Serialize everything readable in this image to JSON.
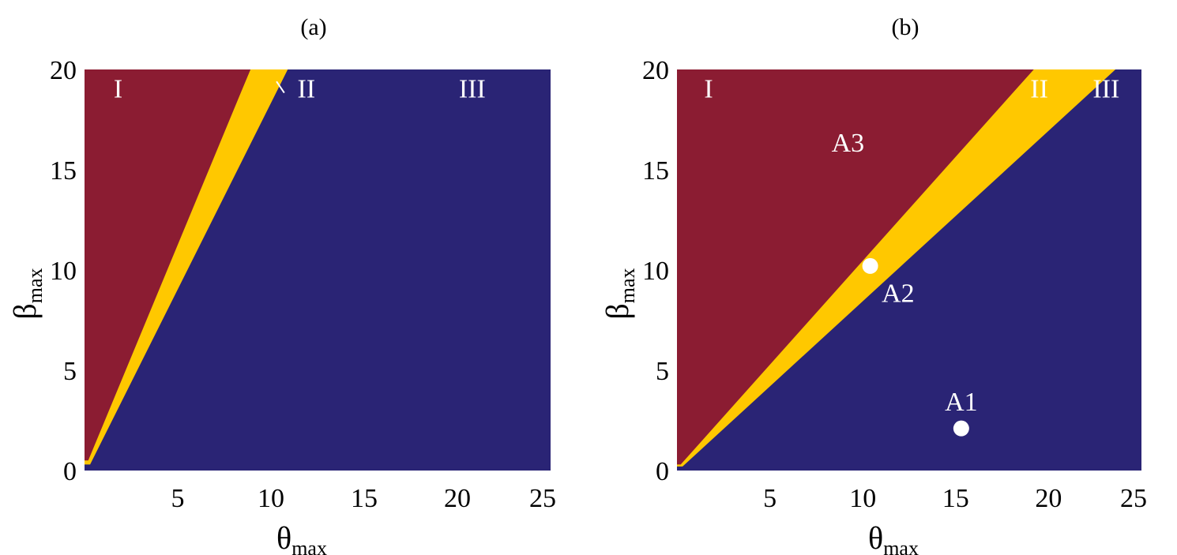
{
  "colors": {
    "region_I": "#8b1c32",
    "region_II": "#ffc800",
    "region_III": "#2a2475",
    "marker": "#ffffff"
  },
  "chart_data": [
    {
      "type": "heatmap",
      "title": "(a)",
      "xlabel": "θ",
      "xlabel_sub": "max",
      "ylabel": "β",
      "ylabel_sub": "max",
      "xlim": [
        0,
        25
      ],
      "ylim": [
        0,
        20
      ],
      "x_ticks": [
        "5",
        "10",
        "15",
        "20",
        "25"
      ],
      "y_ticks": [
        "0",
        "5",
        "10",
        "15",
        "20"
      ],
      "grid": false,
      "regions": [
        {
          "name": "I",
          "label": "I",
          "boundary_upper_theta_at_beta_max": 8.9
        },
        {
          "name": "II",
          "label": "II",
          "boundary_upper_theta_at_beta_max": 10.9
        },
        {
          "name": "III",
          "label": "III"
        }
      ],
      "boundaries": {
        "I_II": {
          "theta0": 0.2,
          "beta0": 0.5,
          "theta1": 8.9,
          "beta1": 20
        },
        "II_III": {
          "theta0": 0.3,
          "beta0": 0.3,
          "theta1": 10.9,
          "beta1": 20
        }
      },
      "region_labels": [
        {
          "text": "I",
          "x": 1.8,
          "y": 18.6
        },
        {
          "text": "II",
          "x": 11.9,
          "y": 18.6,
          "leader_from": [
            10.3,
            19.4
          ]
        },
        {
          "text": "III",
          "x": 20.8,
          "y": 18.6
        }
      ],
      "points": []
    },
    {
      "type": "heatmap",
      "title": "(b)",
      "xlabel": "θ",
      "xlabel_sub": "max",
      "ylabel": "β",
      "ylabel_sub": "max",
      "xlim": [
        0,
        25
      ],
      "ylim": [
        0,
        20
      ],
      "x_ticks": [
        "5",
        "10",
        "15",
        "20",
        "25"
      ],
      "y_ticks": [
        "0",
        "5",
        "10",
        "15",
        "20"
      ],
      "grid": false,
      "boundaries": {
        "I_II": {
          "theta0": 0.2,
          "beta0": 0.3,
          "theta1": 19.2,
          "beta1": 20
        },
        "II_III": {
          "theta0": 0.3,
          "beta0": 0.2,
          "theta1": 23.6,
          "beta1": 20
        }
      },
      "region_labels": [
        {
          "text": "I",
          "x": 1.7,
          "y": 18.6
        },
        {
          "text": "II",
          "x": 19.5,
          "y": 18.6
        },
        {
          "text": "III",
          "x": 23.1,
          "y": 18.6
        },
        {
          "text": "A3",
          "x": 9.2,
          "y": 15.9
        },
        {
          "text": "A2",
          "x": 11.9,
          "y": 8.4
        },
        {
          "text": "A1",
          "x": 15.3,
          "y": 3.0
        }
      ],
      "points": [
        {
          "name": "A2",
          "theta": 10.4,
          "beta": 10.2
        },
        {
          "name": "A1",
          "theta": 15.3,
          "beta": 2.1
        }
      ]
    }
  ]
}
